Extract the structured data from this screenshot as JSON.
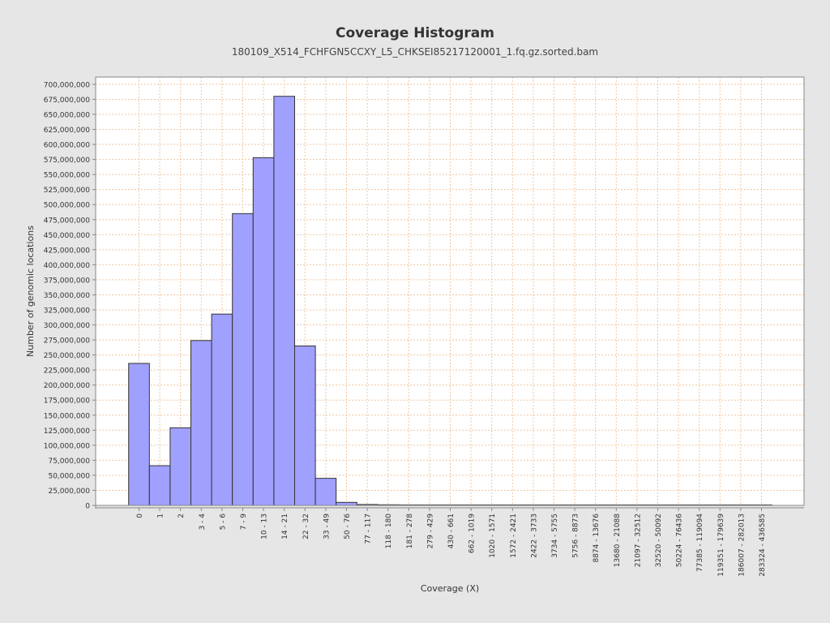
{
  "chart_data": {
    "type": "bar",
    "title": "Coverage Histogram",
    "subtitle": "180109_X514_FCHFGN5CCXY_L5_CHKSEI85217120001_1.fq.gz.sorted.bam",
    "xlabel": "Coverage (X)",
    "ylabel": "Number of genomic locations",
    "ylim": [
      0,
      712000000
    ],
    "ytick_step": 25000000,
    "grid": true,
    "categories": [
      "0",
      "1",
      "2",
      "3 - 4",
      "5 - 6",
      "7 - 9",
      "10 - 13",
      "14 - 21",
      "22 - 32",
      "33 - 49",
      "50 - 76",
      "77 - 117",
      "118 - 180",
      "181 - 278",
      "279 - 429",
      "430 - 661",
      "662 - 1019",
      "1020 - 1571",
      "1572 - 2421",
      "2422 - 3733",
      "3734 - 5755",
      "5756 - 8873",
      "8874 - 13676",
      "13680 - 21088",
      "21097 - 32512",
      "32520 - 50092",
      "50224 - 76436",
      "77385 - 119094",
      "119351 - 179639",
      "186007 - 282013",
      "283324 - 436585"
    ],
    "values": [
      236000000,
      66000000,
      129000000,
      274000000,
      318000000,
      485000000,
      578000000,
      680000000,
      265000000,
      45000000,
      5000000,
      1500000,
      1000000,
      700000,
      300000,
      200000,
      100000,
      80000,
      60000,
      40000,
      30000,
      20000,
      15000,
      10000,
      8000,
      5000,
      4000,
      3000,
      2000,
      1000,
      500
    ],
    "colors": {
      "bar_fill": "#a0a0ff",
      "bar_stroke": "#333333",
      "grid": "#f2c6a0",
      "plot_bg": "#ffffff",
      "page_bg": "#e6e6e6"
    }
  }
}
